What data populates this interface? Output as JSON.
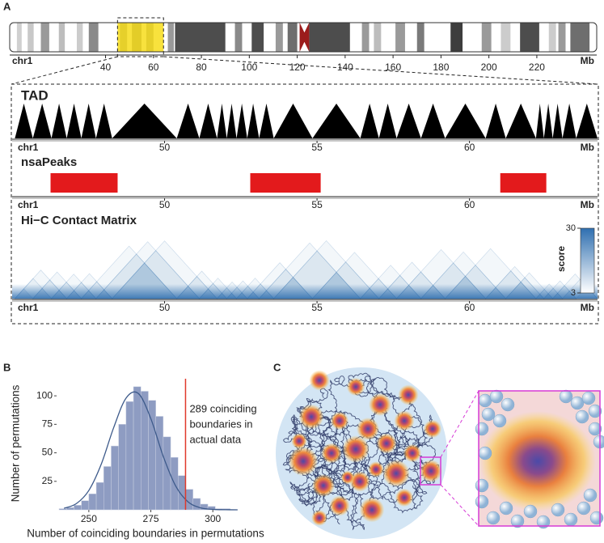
{
  "panel_labels": [
    "A",
    "B",
    "C"
  ],
  "chart_data": [
    {
      "type": "ideogram",
      "chromosome": "chr1",
      "unit": "Mb",
      "xlim": [
        0,
        245
      ],
      "xticks": [
        40,
        60,
        80,
        100,
        120,
        140,
        160,
        180,
        200,
        220
      ],
      "bands": [
        {
          "start": 3,
          "end": 5,
          "color": "#d0d0d0"
        },
        {
          "start": 7.5,
          "end": 10,
          "color": "#c8c8c8"
        },
        {
          "start": 13,
          "end": 16.5,
          "color": "#9a9a9a"
        },
        {
          "start": 20.5,
          "end": 23,
          "color": "#bdbdbd"
        },
        {
          "start": 28,
          "end": 30.5,
          "color": "#cccccc"
        },
        {
          "start": 33,
          "end": 37,
          "color": "#8a8a8a"
        },
        {
          "start": 46,
          "end": 49,
          "color": "#9a9a9a"
        },
        {
          "start": 51,
          "end": 55,
          "color": "#8a8a8a"
        },
        {
          "start": 57,
          "end": 60,
          "color": "#9a9a9a"
        },
        {
          "start": 66,
          "end": 68.5,
          "color": "#9a9a9a"
        },
        {
          "start": 69,
          "end": 90,
          "color": "#4d4d4d"
        },
        {
          "start": 94,
          "end": 97,
          "color": "#8a8a8a"
        },
        {
          "start": 101,
          "end": 106,
          "color": "#4d4d4d"
        },
        {
          "start": 111,
          "end": 114,
          "color": "#9a9a9a"
        },
        {
          "start": 116,
          "end": 120,
          "color": "#6e6e6e"
        },
        {
          "start": 125,
          "end": 142,
          "color": "#4d4d4d"
        },
        {
          "start": 147,
          "end": 150,
          "color": "#9a9a9a"
        },
        {
          "start": 152,
          "end": 155,
          "color": "#bdbdbd"
        },
        {
          "start": 161,
          "end": 165,
          "color": "#9a9a9a"
        },
        {
          "start": 170,
          "end": 173,
          "color": "#7a7a7a"
        },
        {
          "start": 184,
          "end": 189,
          "color": "#3d3d3d"
        },
        {
          "start": 197,
          "end": 201,
          "color": "#9a9a9a"
        },
        {
          "start": 205,
          "end": 209,
          "color": "#cccccc"
        },
        {
          "start": 213,
          "end": 221,
          "color": "#4d4d4d"
        },
        {
          "start": 225,
          "end": 228,
          "color": "#cccccc"
        },
        {
          "start": 229,
          "end": 232,
          "color": "#9a9a9a"
        },
        {
          "start": 234,
          "end": 242,
          "color": "#6e6e6e"
        }
      ],
      "centromere": {
        "start": 121,
        "end": 125,
        "color": "#9b1c1c"
      },
      "highlight": {
        "start": 45,
        "end": 64.2,
        "color": "#f7dc12"
      }
    },
    {
      "type": "tad",
      "title": "TAD",
      "chromosome": "chr1",
      "unit": "Mb",
      "xlim": [
        45,
        64.2
      ],
      "xticks": [
        50,
        55,
        60
      ],
      "color": "#000000",
      "boundaries": [
        45.09,
        45.68,
        46.29,
        46.79,
        47.27,
        47.75,
        48.28,
        50.4,
        51.14,
        51.72,
        52.04,
        52.36,
        52.71,
        53.1,
        53.58,
        54.85,
        56.42,
        57.03,
        57.61,
        58.41,
        59.2,
        60.53,
        61.19,
        62.18,
        62.44,
        62.73,
        63.05,
        63.5,
        64.2
      ]
    },
    {
      "type": "peaks",
      "title": "nsaPeaks",
      "chromosome": "chr1",
      "unit": "Mb",
      "xlim": [
        45,
        64.2
      ],
      "xticks": [
        50,
        55,
        60
      ],
      "color": "#e31a1c",
      "peaks": [
        {
          "start": 46.26,
          "end": 48.46
        },
        {
          "start": 52.81,
          "end": 55.12
        },
        {
          "start": 61.01,
          "end": 62.52
        }
      ]
    },
    {
      "type": "hic",
      "title": "Hi−C Contact Matrix",
      "chromosome": "chr1",
      "unit": "Mb",
      "xlim": [
        45,
        64.2
      ],
      "xticks": [
        50,
        55,
        60
      ],
      "color": "#2f6fb0",
      "colorbar_label": "score",
      "clim": [
        3,
        30
      ],
      "cticks": [
        3,
        30
      ]
    },
    {
      "type": "histogram",
      "xlabel": "Number of coinciding boundaries in permutations",
      "ylabel": "Number of permutations",
      "xlim": [
        237,
        312
      ],
      "ylim": [
        0,
        115
      ],
      "xticks": [
        250,
        275,
        300
      ],
      "yticks": [
        25,
        50,
        75,
        100
      ],
      "bins": [
        238,
        241,
        244,
        247,
        250,
        253,
        256,
        259,
        262,
        265,
        268,
        271,
        274,
        277,
        280,
        283,
        286,
        289,
        292,
        295,
        298,
        301,
        304,
        307,
        310
      ],
      "counts": [
        1,
        2,
        4,
        8,
        14,
        24,
        38,
        56,
        75,
        95,
        108,
        104,
        96,
        82,
        64,
        46,
        30,
        18,
        10,
        5,
        3,
        1,
        1,
        0
      ],
      "color": "#8e9cc2",
      "curve": {
        "x": [
          240,
          245,
          250,
          255,
          260,
          265,
          270,
          275,
          280,
          285,
          290,
          295,
          300,
          305,
          310
        ],
        "values": [
          1.3,
          5.5,
          17,
          40,
          72,
          98,
          102,
          80,
          47,
          21,
          7,
          1.8,
          0.4,
          0.1,
          0
        ],
        "color": "#3d5a8a"
      },
      "vline": 289,
      "vline_color": "#e0392b",
      "annotation": [
        "289 coinciding",
        "boundaries in",
        "actual data"
      ]
    }
  ]
}
